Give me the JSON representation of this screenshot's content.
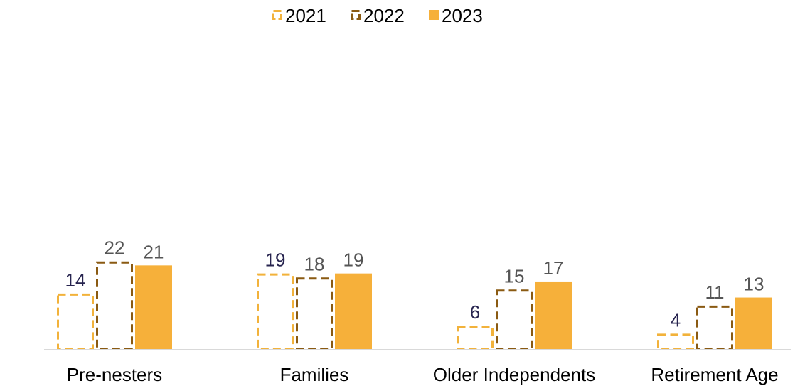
{
  "chart_data": {
    "type": "bar",
    "title": "",
    "xlabel": "",
    "ylabel": "",
    "categories": [
      "Pre-nesters",
      "Families",
      "Older Independents",
      "Retirement Age"
    ],
    "series": [
      {
        "name": "2021",
        "values": [
          14,
          19,
          6,
          4
        ],
        "style": "dashed-outline",
        "color": "#F2B23B",
        "label_color": "#27244F"
      },
      {
        "name": "2022",
        "values": [
          22,
          18,
          15,
          11
        ],
        "style": "dashed-outline",
        "color": "#8A5A12",
        "label_color": "#555555"
      },
      {
        "name": "2023",
        "values": [
          21,
          19,
          17,
          13
        ],
        "style": "solid-fill",
        "color": "#F6B03A",
        "label_color": "#555555"
      }
    ],
    "ylim": [
      0,
      65
    ],
    "y_axis_shown": false,
    "grid": false,
    "legend_position": "top-center",
    "baseline_color": "#D9D9D9"
  }
}
